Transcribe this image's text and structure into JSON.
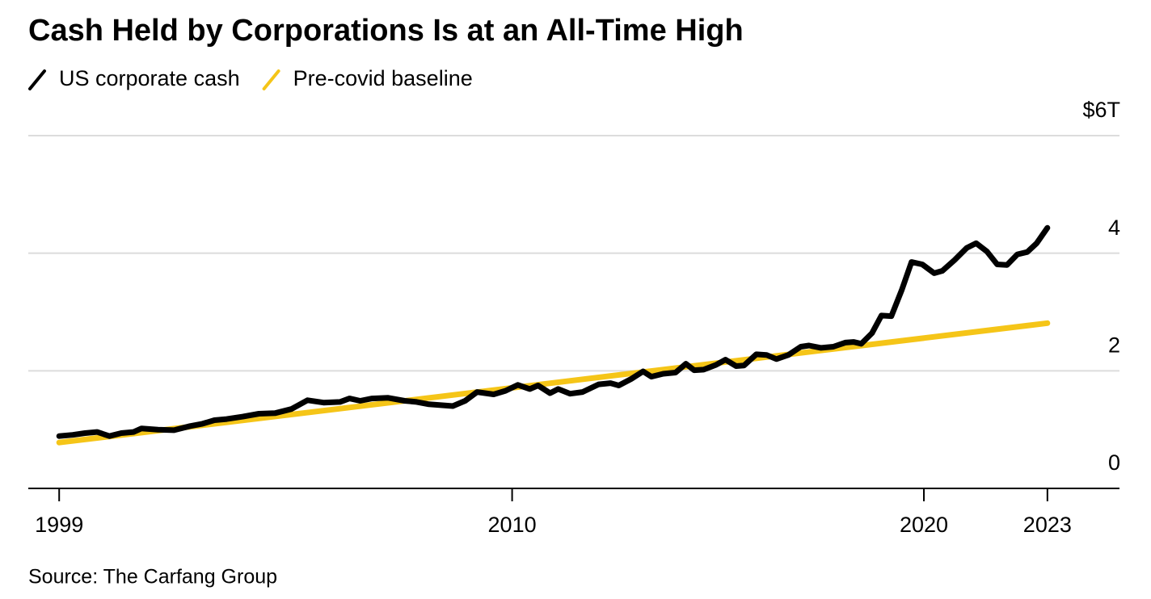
{
  "chart_data": {
    "type": "line",
    "title": "Cash Held by Corporations Is at an All-Time High",
    "source": "Source: The Carfang Group",
    "series": [
      {
        "name": "US corporate cash",
        "color": "#000000",
        "x": [
          1999.0,
          1999.33,
          1999.63,
          1999.92,
          2000.22,
          2000.51,
          2000.81,
          2001.0,
          2001.4,
          2001.79,
          2002.18,
          2002.48,
          2002.77,
          2003.07,
          2003.46,
          2003.85,
          2004.24,
          2004.64,
          2005.03,
          2005.42,
          2005.82,
          2006.05,
          2006.31,
          2006.6,
          2006.99,
          2007.39,
          2007.68,
          2007.98,
          2008.56,
          2008.86,
          2009.15,
          2009.55,
          2009.84,
          2010.14,
          2010.43,
          2010.63,
          2010.92,
          2011.12,
          2011.41,
          2011.71,
          2012.1,
          2012.39,
          2012.59,
          2012.89,
          2013.18,
          2013.38,
          2013.67,
          2013.97,
          2014.22,
          2014.42,
          2014.65,
          2014.95,
          2015.18,
          2015.44,
          2015.63,
          2015.93,
          2016.18,
          2016.42,
          2016.71,
          2017.01,
          2017.21,
          2017.5,
          2017.8,
          2018.09,
          2018.29,
          2018.48,
          2018.74,
          2018.97,
          2019.21,
          2019.46,
          2019.7,
          2019.96,
          2020.25,
          2020.45,
          2020.74,
          2021.04,
          2021.27,
          2021.53,
          2021.78,
          2022.02,
          2022.27,
          2022.51,
          2022.74,
          2023.0
        ],
        "values": [
          0.89,
          0.91,
          0.94,
          0.96,
          0.89,
          0.94,
          0.96,
          1.02,
          1.0,
          0.99,
          1.06,
          1.1,
          1.16,
          1.18,
          1.22,
          1.27,
          1.28,
          1.35,
          1.5,
          1.46,
          1.47,
          1.53,
          1.49,
          1.53,
          1.54,
          1.49,
          1.47,
          1.43,
          1.4,
          1.49,
          1.64,
          1.6,
          1.66,
          1.76,
          1.69,
          1.75,
          1.62,
          1.69,
          1.61,
          1.64,
          1.77,
          1.79,
          1.75,
          1.86,
          1.99,
          1.9,
          1.95,
          1.97,
          2.12,
          2.01,
          2.02,
          2.1,
          2.19,
          2.08,
          2.09,
          2.28,
          2.27,
          2.2,
          2.27,
          2.41,
          2.43,
          2.39,
          2.41,
          2.48,
          2.49,
          2.46,
          2.64,
          2.94,
          2.93,
          3.37,
          3.85,
          3.81,
          3.66,
          3.7,
          3.88,
          4.09,
          4.17,
          4.03,
          3.81,
          3.8,
          3.98,
          4.02,
          4.17,
          4.43
        ]
      },
      {
        "name": "Pre-covid baseline",
        "color": "#f5c518",
        "x": [
          1999,
          2023
        ],
        "values": [
          0.78,
          2.81
        ]
      }
    ],
    "xlim": [
      1998.25,
      2024.75
    ],
    "xticks": [
      1999,
      2010,
      2020,
      2023
    ],
    "ylim": [
      0,
      6
    ],
    "yticks": [
      0,
      2,
      4,
      {
        "value": 6,
        "label": "$6T"
      }
    ],
    "grid": true
  }
}
